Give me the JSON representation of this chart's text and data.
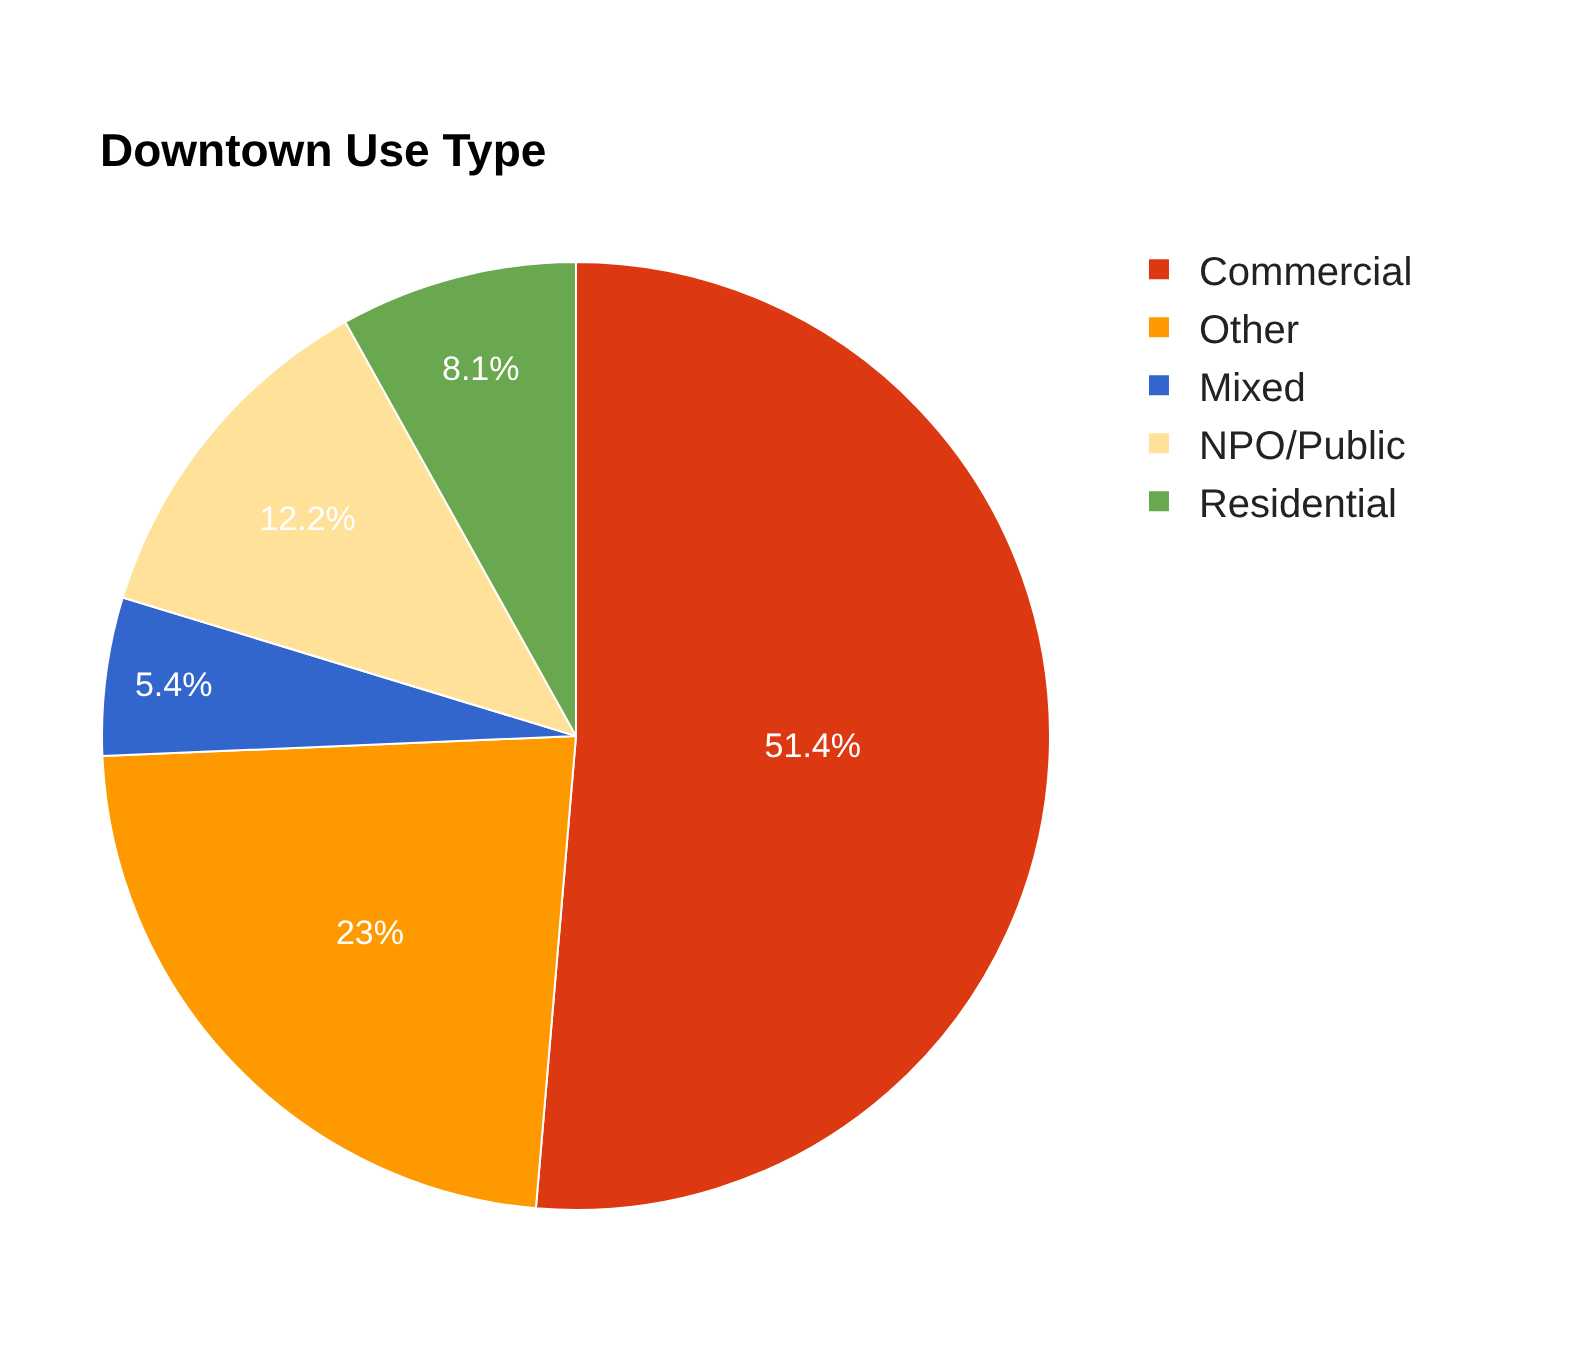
{
  "chart_data": {
    "type": "pie",
    "title": "Downtown Use Type",
    "categories": [
      "Commercial",
      "Other",
      "Mixed",
      "NPO/Public",
      "Residential"
    ],
    "values": [
      51.4,
      23,
      5.4,
      12.2,
      8.1
    ],
    "colors": [
      "#dc3912",
      "#ff9900",
      "#3366cc",
      "#ffe199",
      "#6aa84f"
    ],
    "value_labels": [
      "51.4%",
      "23%",
      "5.4%",
      "12.2%",
      "8.1%"
    ],
    "legend": "top right"
  }
}
